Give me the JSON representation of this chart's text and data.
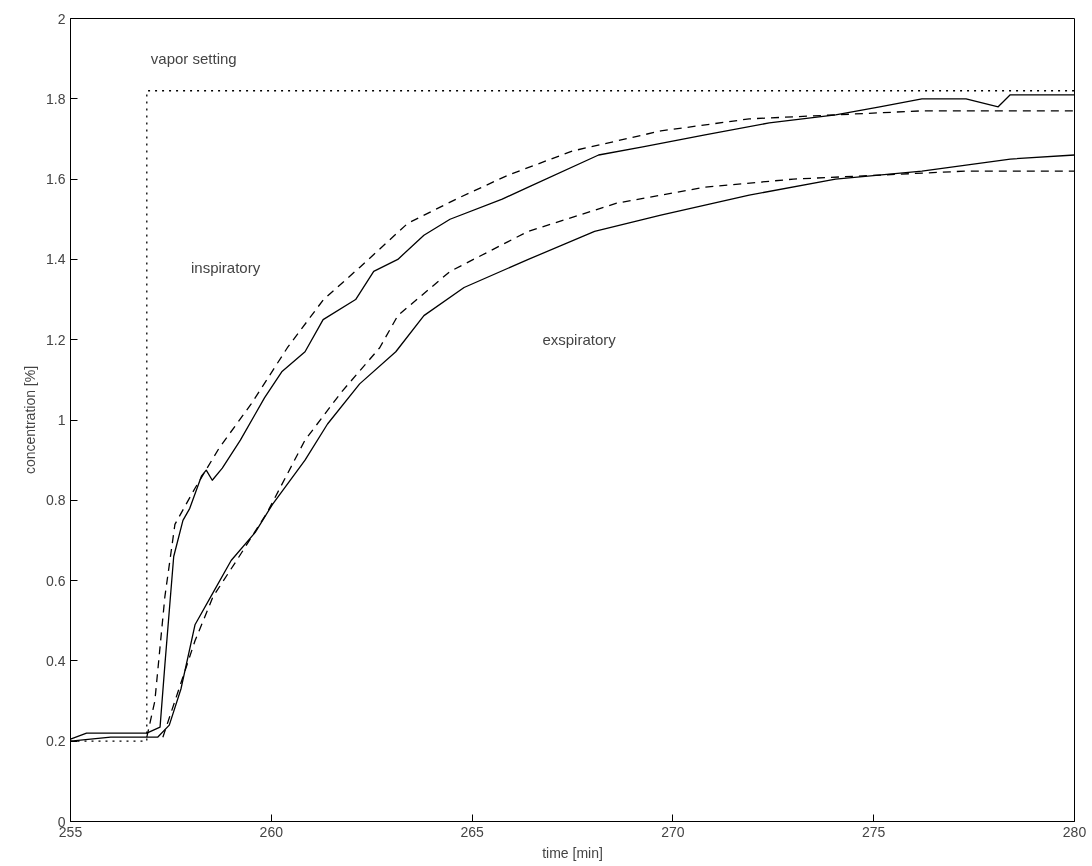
{
  "chart_data": {
    "type": "line",
    "xlabel": "time [min]",
    "ylabel": "concentration [%]",
    "xlim": [
      255,
      280
    ],
    "ylim": [
      0,
      2
    ],
    "xticks": [
      255,
      260,
      265,
      270,
      275,
      280
    ],
    "yticks": [
      0,
      0.2,
      0.4,
      0.6,
      0.8,
      1,
      1.2,
      1.4,
      1.6,
      1.8,
      2
    ],
    "grid": false,
    "marker": "none",
    "series": [
      {
        "color": "#000000",
        "line_style": "dotted",
        "x": [
          255,
          256.9,
          256.9,
          280
        ],
        "values": [
          0.2,
          0.2,
          1.82,
          1.82
        ]
      },
      {
        "color": "#000000",
        "line_style": "solid",
        "x": [
          255,
          255.4,
          256.6,
          256.9,
          257.23,
          257.35,
          257.57,
          257.8,
          257.97,
          258.26,
          258.38,
          258.53,
          258.78,
          259.23,
          259.83,
          260.26,
          260.84,
          261.29,
          262.1,
          262.55,
          263.15,
          263.8,
          264.45,
          265.75,
          266.4,
          268.15,
          269.25,
          270.8,
          272.4,
          274.05,
          275.15,
          276.2,
          277.3,
          278.1,
          278.4,
          279.8,
          280
        ],
        "values": [
          0.205,
          0.22,
          0.22,
          0.22,
          0.235,
          0.39,
          0.66,
          0.75,
          0.78,
          0.86,
          0.875,
          0.85,
          0.88,
          0.95,
          1.055,
          1.12,
          1.17,
          1.25,
          1.3,
          1.37,
          1.4,
          1.46,
          1.5,
          1.55,
          1.58,
          1.66,
          1.68,
          1.71,
          1.74,
          1.76,
          1.78,
          1.8,
          1.8,
          1.78,
          1.81,
          1.81,
          1.81
        ]
      },
      {
        "color": "#000000",
        "line_style": "dashed",
        "x": [
          256.9,
          257.1,
          257.35,
          257.6,
          258.1,
          258.7,
          259.5,
          260.4,
          261.3,
          262.2,
          263.4,
          264.6,
          265.9,
          267.5,
          269.7,
          271.9,
          274.05,
          276.2,
          280
        ],
        "values": [
          0.21,
          0.3,
          0.56,
          0.74,
          0.83,
          0.93,
          1.04,
          1.18,
          1.3,
          1.38,
          1.49,
          1.55,
          1.61,
          1.67,
          1.72,
          1.75,
          1.76,
          1.77,
          1.77
        ]
      },
      {
        "color": "#000000",
        "line_style": "solid",
        "x": [
          255,
          256,
          257.17,
          257.46,
          257.75,
          258.1,
          258.55,
          259.0,
          259.6,
          260.03,
          260.84,
          261.4,
          262.2,
          263.1,
          263.8,
          264.8,
          266.4,
          268.05,
          269.7,
          271.9,
          274.05,
          276.2,
          278.4,
          280
        ],
        "values": [
          0.2,
          0.21,
          0.21,
          0.24,
          0.33,
          0.49,
          0.57,
          0.65,
          0.72,
          0.79,
          0.9,
          0.99,
          1.09,
          1.17,
          1.26,
          1.33,
          1.4,
          1.47,
          1.51,
          1.56,
          1.6,
          1.62,
          1.65,
          1.66
        ]
      },
      {
        "color": "#000000",
        "line_style": "dashed",
        "x": [
          257.3,
          257.6,
          258.1,
          258.55,
          259.2,
          259.9,
          260.84,
          261.75,
          262.7,
          263.15,
          264.45,
          266.4,
          268.6,
          270.8,
          273.0,
          275.15,
          277.3,
          280
        ],
        "values": [
          0.21,
          0.3,
          0.45,
          0.56,
          0.66,
          0.77,
          0.95,
          1.07,
          1.18,
          1.26,
          1.37,
          1.47,
          1.54,
          1.58,
          1.6,
          1.61,
          1.62,
          1.62
        ]
      }
    ],
    "annotations": [
      "vapor setting",
      "inspiratory",
      "exspiratory"
    ]
  }
}
